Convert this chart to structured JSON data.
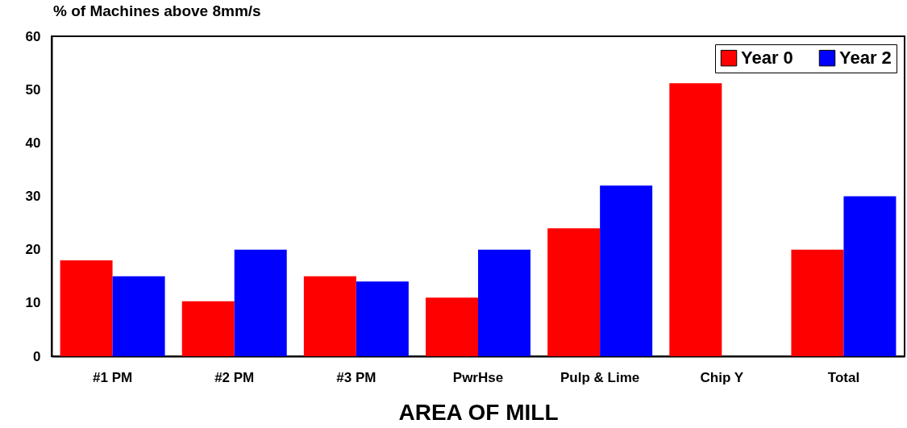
{
  "chart_data": {
    "type": "bar",
    "title": "% of Machines above 8mm/s",
    "xlabel": "AREA OF  MILL",
    "categories": [
      "#1 PM",
      "#2 PM",
      "#3 PM",
      "PwrHse",
      "Pulp &  Lime",
      "Chip Y",
      "Total"
    ],
    "series": [
      {
        "name": "Year 0",
        "color": "#ff0000",
        "values": [
          18,
          10.3,
          15,
          11,
          24,
          51.2,
          20
        ]
      },
      {
        "name": "Year 2",
        "color": "#0000ff",
        "values": [
          15,
          20,
          14,
          20,
          32,
          null,
          30
        ]
      }
    ],
    "ylim": [
      0,
      60
    ],
    "yticks": [
      0,
      10,
      20,
      30,
      40,
      50,
      60
    ],
    "grid": false,
    "legend": "top right"
  }
}
